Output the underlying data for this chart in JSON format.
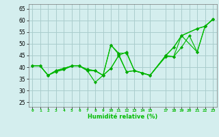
{
  "background_color": "#d4eeee",
  "grid_color": "#aacccc",
  "line_color": "#00bb00",
  "marker_color": "#00aa00",
  "xlabel": "Humidité relative (%)",
  "ylabel_ticks": [
    25,
    30,
    35,
    40,
    45,
    50,
    55,
    60,
    65
  ],
  "xlim": [
    -0.5,
    23.5
  ],
  "ylim": [
    23,
    67
  ],
  "xticks": [
    0,
    1,
    2,
    3,
    4,
    5,
    6,
    7,
    8,
    9,
    10,
    11,
    12,
    13,
    14,
    15,
    17,
    18,
    19,
    20,
    21,
    22,
    23
  ],
  "series_data": [
    {
      "x": [
        0,
        1,
        2,
        3,
        4,
        5,
        6,
        7,
        8,
        9,
        10,
        11,
        12,
        13,
        14,
        15,
        17,
        18,
        19,
        21,
        22,
        23
      ],
      "y": [
        40.5,
        40.5,
        36.5,
        38.5,
        39.5,
        40.5,
        40.5,
        38.5,
        38.5,
        36.5,
        49.5,
        45.5,
        38.0,
        38.5,
        37.5,
        36.5,
        45.0,
        48.5,
        53.5,
        56.5,
        57.5,
        60.5
      ]
    },
    {
      "x": [
        0,
        1,
        2,
        3,
        4,
        5,
        6,
        7,
        8,
        9,
        10,
        11,
        12,
        13,
        14,
        15,
        17,
        18,
        19,
        21,
        22,
        23
      ],
      "y": [
        40.5,
        40.5,
        36.5,
        38.0,
        39.0,
        40.5,
        40.5,
        38.5,
        33.5,
        36.5,
        39.5,
        45.0,
        46.5,
        38.5,
        37.5,
        36.5,
        44.5,
        44.5,
        53.5,
        46.5,
        57.5,
        60.5
      ]
    },
    {
      "x": [
        0,
        1,
        2,
        3,
        4,
        5,
        6,
        7,
        8,
        9,
        10,
        11,
        12,
        13,
        14,
        15,
        17,
        18,
        19,
        21,
        22,
        23
      ],
      "y": [
        40.5,
        40.5,
        36.5,
        38.5,
        39.0,
        40.5,
        40.5,
        39.0,
        38.5,
        36.5,
        49.5,
        46.0,
        46.0,
        38.5,
        37.5,
        36.5,
        45.0,
        48.5,
        53.5,
        56.5,
        57.5,
        60.5
      ]
    },
    {
      "x": [
        0,
        1,
        2,
        3,
        4,
        5,
        6,
        7,
        8,
        9,
        10,
        11,
        12,
        13,
        14,
        15,
        17,
        18,
        19,
        20,
        21,
        22,
        23
      ],
      "y": [
        40.5,
        40.5,
        36.5,
        38.5,
        39.5,
        40.5,
        40.5,
        39.0,
        38.5,
        36.5,
        39.5,
        45.0,
        38.0,
        38.5,
        37.5,
        36.5,
        45.0,
        44.5,
        48.5,
        53.5,
        46.5,
        57.5,
        60.5
      ]
    }
  ]
}
